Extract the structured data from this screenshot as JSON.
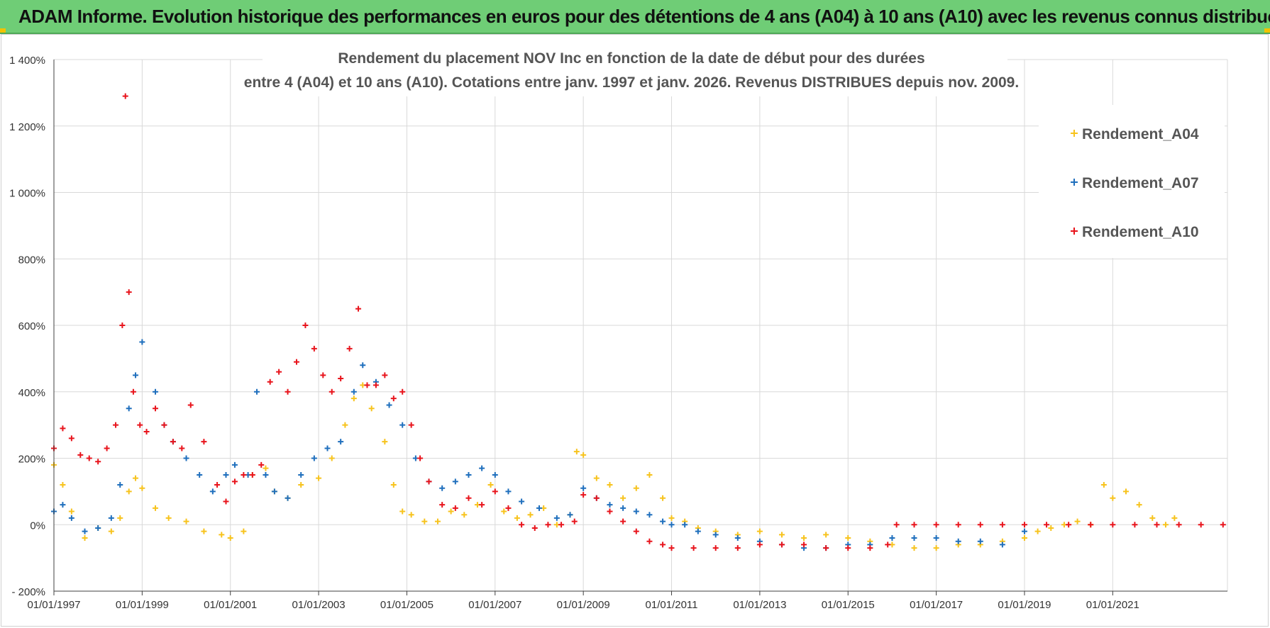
{
  "banner": {
    "title": "ADAM Informe. Evolution historique des performances en euros pour des détentions de 4 ans (A04) à 10 ans (A10) avec les revenus connus distribués"
  },
  "colors": {
    "A04": "#f7c31d",
    "A07": "#1f6fbd",
    "A10": "#e8141c",
    "grid": "#d9d9d9",
    "axis": "#404040"
  },
  "chart_data": {
    "type": "scatter",
    "title_line1": "Rendement du placement NOV Inc en fonction de la date de début pour des durées",
    "title_line2": "entre 4 (A04) et 10 ans (A10). Cotations entre janv. 1997 et janv. 2026. Revenus DISTRIBUES depuis nov. 2009.",
    "xlabel": "",
    "ylabel": "",
    "xlim": [
      1997.0,
      2023.6
    ],
    "ylim": [
      -200,
      1400
    ],
    "y_ticks": [
      -200,
      0,
      200,
      400,
      600,
      800,
      1000,
      1200,
      1400
    ],
    "y_tick_labels": [
      "- 200%",
      "0%",
      "200%",
      "400%",
      "600%",
      "800%",
      "1 000%",
      "1 200%",
      "1 400%"
    ],
    "x_ticks": [
      1997.0,
      1999.0,
      2001.0,
      2003.0,
      2005.0,
      2007.0,
      2009.0,
      2011.0,
      2013.0,
      2015.0,
      2017.0,
      2019.0,
      2021.0
    ],
    "x_tick_labels": [
      "01/01/1997",
      "01/01/1999",
      "01/01/2001",
      "01/01/2003",
      "01/01/2005",
      "01/01/2007",
      "01/01/2009",
      "01/01/2011",
      "01/01/2013",
      "01/01/2015",
      "01/01/2017",
      "01/01/2019",
      "01/01/2021"
    ],
    "legend_position": "top-right",
    "series": [
      {
        "name": "Rendement_A04",
        "x": [
          1997.0,
          1997.2,
          1997.4,
          1997.7,
          1998.0,
          1998.3,
          1998.5,
          1998.7,
          1998.85,
          1999.0,
          1999.3,
          1999.6,
          2000.0,
          2000.4,
          2000.8,
          2001.0,
          2001.3,
          2001.5,
          2001.8,
          2002.0,
          2002.3,
          2002.6,
          2003.0,
          2003.3,
          2003.6,
          2003.8,
          2004.0,
          2004.2,
          2004.5,
          2004.7,
          2004.9,
          2005.1,
          2005.4,
          2005.7,
          2006.0,
          2006.3,
          2006.6,
          2006.9,
          2007.2,
          2007.5,
          2007.8,
          2008.1,
          2008.4,
          2008.7,
          2008.85,
          2009.0,
          2009.3,
          2009.6,
          2009.9,
          2010.2,
          2010.5,
          2010.8,
          2011.0,
          2011.3,
          2011.6,
          2012.0,
          2012.5,
          2013.0,
          2013.5,
          2014.0,
          2014.5,
          2015.0,
          2015.5,
          2016.0,
          2016.5,
          2017.0,
          2017.5,
          2018.0,
          2018.5,
          2019.0,
          2019.3,
          2019.6,
          2019.9,
          2020.2,
          2020.5,
          2020.8,
          2021.0,
          2021.3,
          2021.6,
          2021.9,
          2022.2,
          2022.4
        ],
        "y": [
          180,
          120,
          40,
          -40,
          -10,
          -20,
          20,
          100,
          140,
          110,
          50,
          20,
          10,
          -20,
          -30,
          -40,
          -20,
          150,
          170,
          100,
          80,
          120,
          140,
          200,
          300,
          380,
          420,
          350,
          250,
          120,
          40,
          30,
          10,
          10,
          40,
          30,
          60,
          120,
          40,
          20,
          30,
          50,
          0,
          30,
          220,
          210,
          140,
          120,
          80,
          110,
          150,
          80,
          20,
          10,
          -10,
          -20,
          -30,
          -20,
          -30,
          -40,
          -30,
          -40,
          -50,
          -60,
          -70,
          -70,
          -60,
          -60,
          -50,
          -40,
          -20,
          -10,
          0,
          10,
          0,
          120,
          80,
          100,
          60,
          20,
          0,
          20
        ]
      },
      {
        "name": "Rendement_A07",
        "x": [
          1997.0,
          1997.2,
          1997.4,
          1997.7,
          1998.0,
          1998.3,
          1998.5,
          1998.7,
          1998.85,
          1999.0,
          1999.3,
          1999.5,
          1999.7,
          2000.0,
          2000.3,
          2000.6,
          2000.9,
          2001.1,
          2001.4,
          2001.6,
          2001.8,
          2002.0,
          2002.3,
          2002.6,
          2002.9,
          2003.2,
          2003.5,
          2003.8,
          2004.0,
          2004.3,
          2004.6,
          2004.9,
          2005.2,
          2005.5,
          2005.8,
          2006.1,
          2006.4,
          2006.7,
          2007.0,
          2007.3,
          2007.6,
          2008.0,
          2008.4,
          2008.7,
          2009.0,
          2009.3,
          2009.6,
          2009.9,
          2010.2,
          2010.5,
          2010.8,
          2011.0,
          2011.3,
          2011.6,
          2012.0,
          2012.5,
          2013.0,
          2013.5,
          2014.0,
          2014.5,
          2015.0,
          2015.5,
          2016.0,
          2016.5,
          2017.0,
          2017.5,
          2018.0,
          2018.5,
          2019.0
        ],
        "y": [
          40,
          60,
          20,
          -20,
          -10,
          20,
          120,
          350,
          450,
          550,
          400,
          300,
          250,
          200,
          150,
          100,
          150,
          180,
          150,
          400,
          150,
          100,
          80,
          150,
          200,
          230,
          250,
          400,
          480,
          430,
          360,
          300,
          200,
          130,
          110,
          130,
          150,
          170,
          150,
          100,
          70,
          50,
          20,
          30,
          110,
          80,
          60,
          50,
          40,
          30,
          10,
          0,
          0,
          -20,
          -30,
          -40,
          -50,
          -60,
          -70,
          -70,
          -60,
          -60,
          -40,
          -40,
          -40,
          -50,
          -50,
          -60,
          -20
        ]
      },
      {
        "name": "Rendement_A10",
        "x": [
          1997.0,
          1997.2,
          1997.4,
          1997.6,
          1997.8,
          1998.0,
          1998.2,
          1998.4,
          1998.55,
          1998.62,
          1998.7,
          1998.8,
          1998.95,
          1999.1,
          1999.3,
          1999.5,
          1999.7,
          1999.9,
          2000.1,
          2000.4,
          2000.7,
          2000.9,
          2001.1,
          2001.3,
          2001.5,
          2001.7,
          2001.9,
          2002.1,
          2002.3,
          2002.5,
          2002.7,
          2002.9,
          2003.1,
          2003.3,
          2003.5,
          2003.7,
          2003.9,
          2004.1,
          2004.3,
          2004.5,
          2004.7,
          2004.9,
          2005.1,
          2005.3,
          2005.5,
          2005.8,
          2006.1,
          2006.4,
          2006.7,
          2007.0,
          2007.3,
          2007.6,
          2007.9,
          2008.2,
          2008.5,
          2008.8,
          2009.0,
          2009.3,
          2009.6,
          2009.9,
          2010.2,
          2010.5,
          2010.8,
          2011.0,
          2011.5,
          2012.0,
          2012.5,
          2013.0,
          2013.5,
          2014.0,
          2014.5,
          2015.0,
          2015.5,
          2015.9,
          2016.1,
          2016.5,
          2017.0,
          2017.5,
          2018.0,
          2018.5,
          2019.0,
          2019.5,
          2020.0,
          2020.5,
          2021.0,
          2021.5,
          2022.0,
          2022.5,
          2023.0,
          2023.5
        ],
        "y": [
          230,
          290,
          260,
          210,
          200,
          190,
          230,
          300,
          600,
          1290,
          700,
          400,
          300,
          280,
          350,
          300,
          250,
          230,
          360,
          250,
          120,
          70,
          130,
          150,
          150,
          180,
          430,
          460,
          400,
          490,
          600,
          530,
          450,
          400,
          440,
          530,
          650,
          420,
          420,
          450,
          380,
          400,
          300,
          200,
          130,
          60,
          50,
          80,
          60,
          100,
          50,
          0,
          -10,
          0,
          0,
          10,
          90,
          80,
          40,
          10,
          -20,
          -50,
          -60,
          -70,
          -70,
          -70,
          -70,
          -60,
          -60,
          -60,
          -70,
          -70,
          -70,
          -60,
          0,
          0,
          0,
          0,
          0,
          0,
          0,
          0,
          0,
          0,
          0,
          0,
          0,
          0,
          0,
          0
        ]
      }
    ]
  }
}
